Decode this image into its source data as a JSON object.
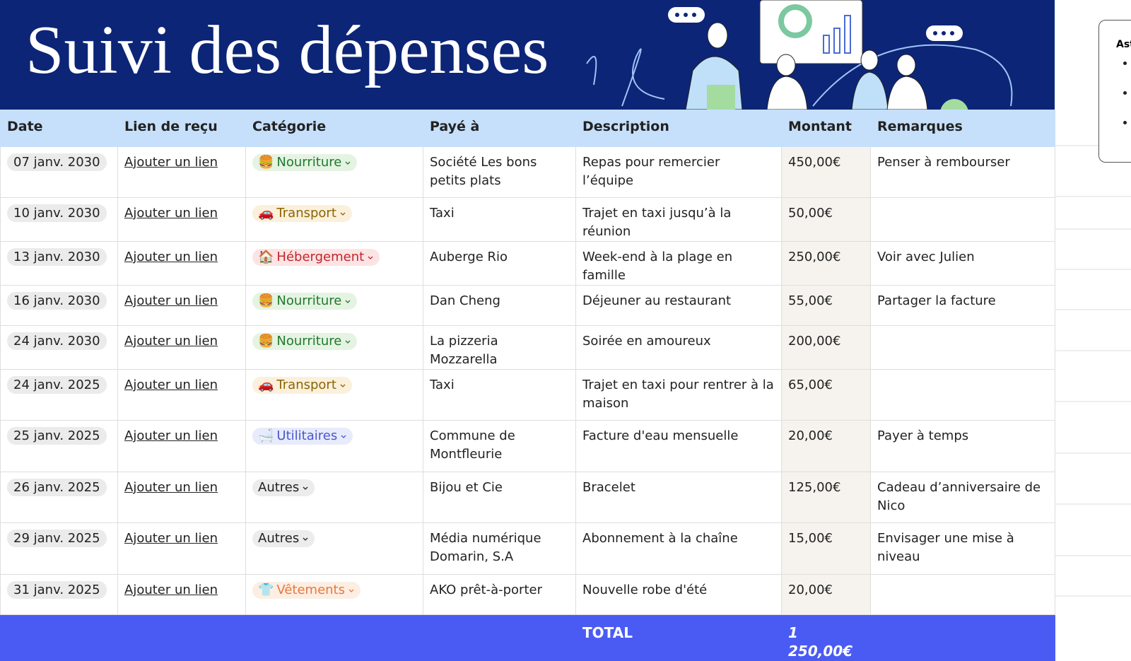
{
  "header": {
    "title": "Suivi des dépenses"
  },
  "table": {
    "headers": [
      "Date",
      "Lien de reçu",
      "Catégorie",
      "Payé à",
      "Description",
      "Montant",
      "Remarques"
    ],
    "rows": [
      {
        "date": "07 janv. 2030",
        "link": "Ajouter un lien",
        "category": {
          "icon": "🍔",
          "label": "Nourriture"
        },
        "paid_to": "Société Les bons petits plats",
        "description": "Repas pour remercier l’équipe",
        "amount": "450,00€",
        "remark": "Penser à rembourser"
      },
      {
        "date": "10 janv. 2030",
        "link": "Ajouter un lien",
        "category": {
          "icon": "🚗",
          "label": "Transport"
        },
        "paid_to": "Taxi",
        "description": "Trajet en taxi jusqu’à la réunion",
        "amount": "50,00€"
      },
      {
        "date": "13 janv. 2030",
        "link": "Ajouter un lien",
        "category": {
          "icon": "🏠",
          "label": "Hébergement"
        },
        "paid_to": "Auberge Rio",
        "description": "Week-end à la plage en famille",
        "amount": "250,00€",
        "remark": "Voir avec Julien"
      },
      {
        "date": "16 janv. 2030",
        "link": "Ajouter un lien",
        "category": {
          "icon": "🍔",
          "label": "Nourriture"
        },
        "paid_to": "Dan Cheng",
        "description": "Déjeuner au restaurant",
        "amount": "55,00€",
        "remark": "Partager la facture"
      },
      {
        "date": "24 janv. 2030",
        "link": "Ajouter un lien",
        "category": {
          "icon": "🍔",
          "label": "Nourriture"
        },
        "paid_to": "La pizzeria Mozzarella",
        "description": "Soirée en amoureux",
        "amount": "200,00€"
      },
      {
        "date": "24 janv. 2025",
        "link": "Ajouter un lien",
        "category": {
          "icon": "🚗",
          "label": "Transport"
        },
        "paid_to": "Taxi",
        "description": "Trajet en taxi pour rentrer à la maison",
        "amount": "65,00€"
      },
      {
        "date": "25 janv. 2025",
        "link": "Ajouter un lien",
        "category": {
          "icon": "🛁",
          "label": "Utilitaires"
        },
        "paid_to": "Commune de Montfleurie",
        "description": "Facture d'eau mensuelle",
        "amount": "20,00€",
        "remark": "Payer à temps"
      },
      {
        "date": "26 janv. 2025",
        "link": "Ajouter un lien",
        "category": {
          "label": "Autres"
        },
        "paid_to": "Bijou et Cie",
        "description": "Bracelet",
        "amount": "125,00€",
        "remark": "Cadeau d’anniversaire de Nico"
      },
      {
        "date": "29 janv. 2025",
        "link": "Ajouter un lien",
        "category": {
          "label": "Autres"
        },
        "paid_to": "Média numérique Domarin, S.A",
        "description": "Abonnement à la chaîne",
        "amount": "15,00€",
        "remark": "Envisager une mise à niveau"
      },
      {
        "date": "31 janv. 2025",
        "link": "Ajouter un lien",
        "category": {
          "icon": "👕",
          "label": "Vêtements"
        },
        "paid_to": "AKO prêt-à-porter",
        "description": "Nouvelle robe d'été",
        "amount": "20,00€"
      }
    ],
    "total": {
      "label": "TOTAL",
      "value": "1 250,00€"
    }
  },
  "side_panel": {
    "title": "Ast"
  }
}
